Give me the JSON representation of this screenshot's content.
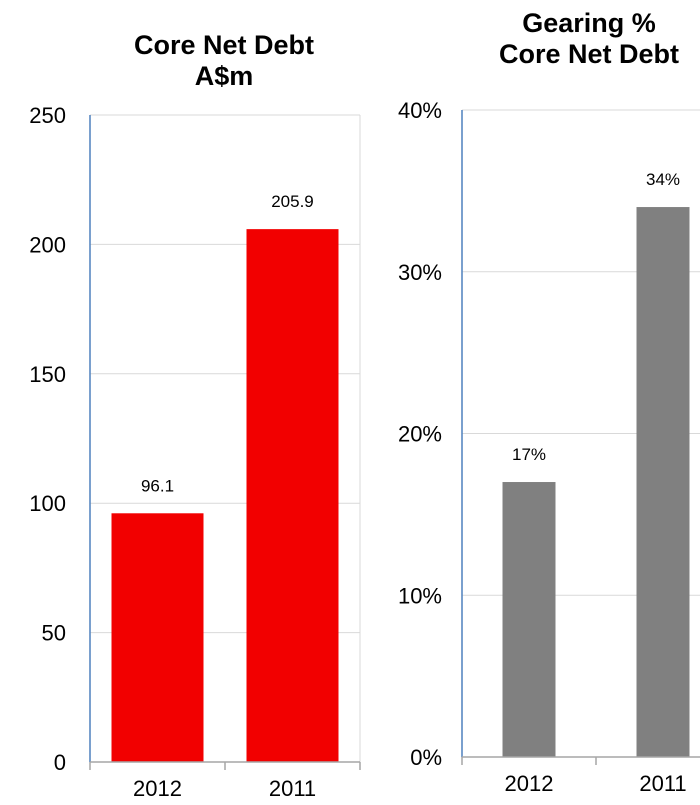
{
  "chart_data": [
    {
      "type": "bar",
      "title_lines": [
        "Core Net Debt",
        "A$m"
      ],
      "categories": [
        "2012",
        "2011"
      ],
      "values": [
        96.1,
        205.9
      ],
      "data_labels": [
        "96.1",
        "205.9"
      ],
      "yticks": [
        "0",
        "50",
        "100",
        "150",
        "200",
        "250"
      ],
      "ylim": [
        0,
        250
      ],
      "grid": true,
      "bar_color": "#F20000",
      "axis_color": "#4F81BD"
    },
    {
      "type": "bar",
      "title_lines": [
        "Gearing %",
        "Core Net Debt"
      ],
      "categories": [
        "2012",
        "2011"
      ],
      "values": [
        0.17,
        0.34
      ],
      "data_labels": [
        "17%",
        "34%"
      ],
      "yticks": [
        "0%",
        "10%",
        "20%",
        "30%",
        "40%"
      ],
      "ylim": [
        0,
        0.4
      ],
      "grid": true,
      "bar_color": "#808080",
      "axis_color": "#4F81BD"
    }
  ]
}
